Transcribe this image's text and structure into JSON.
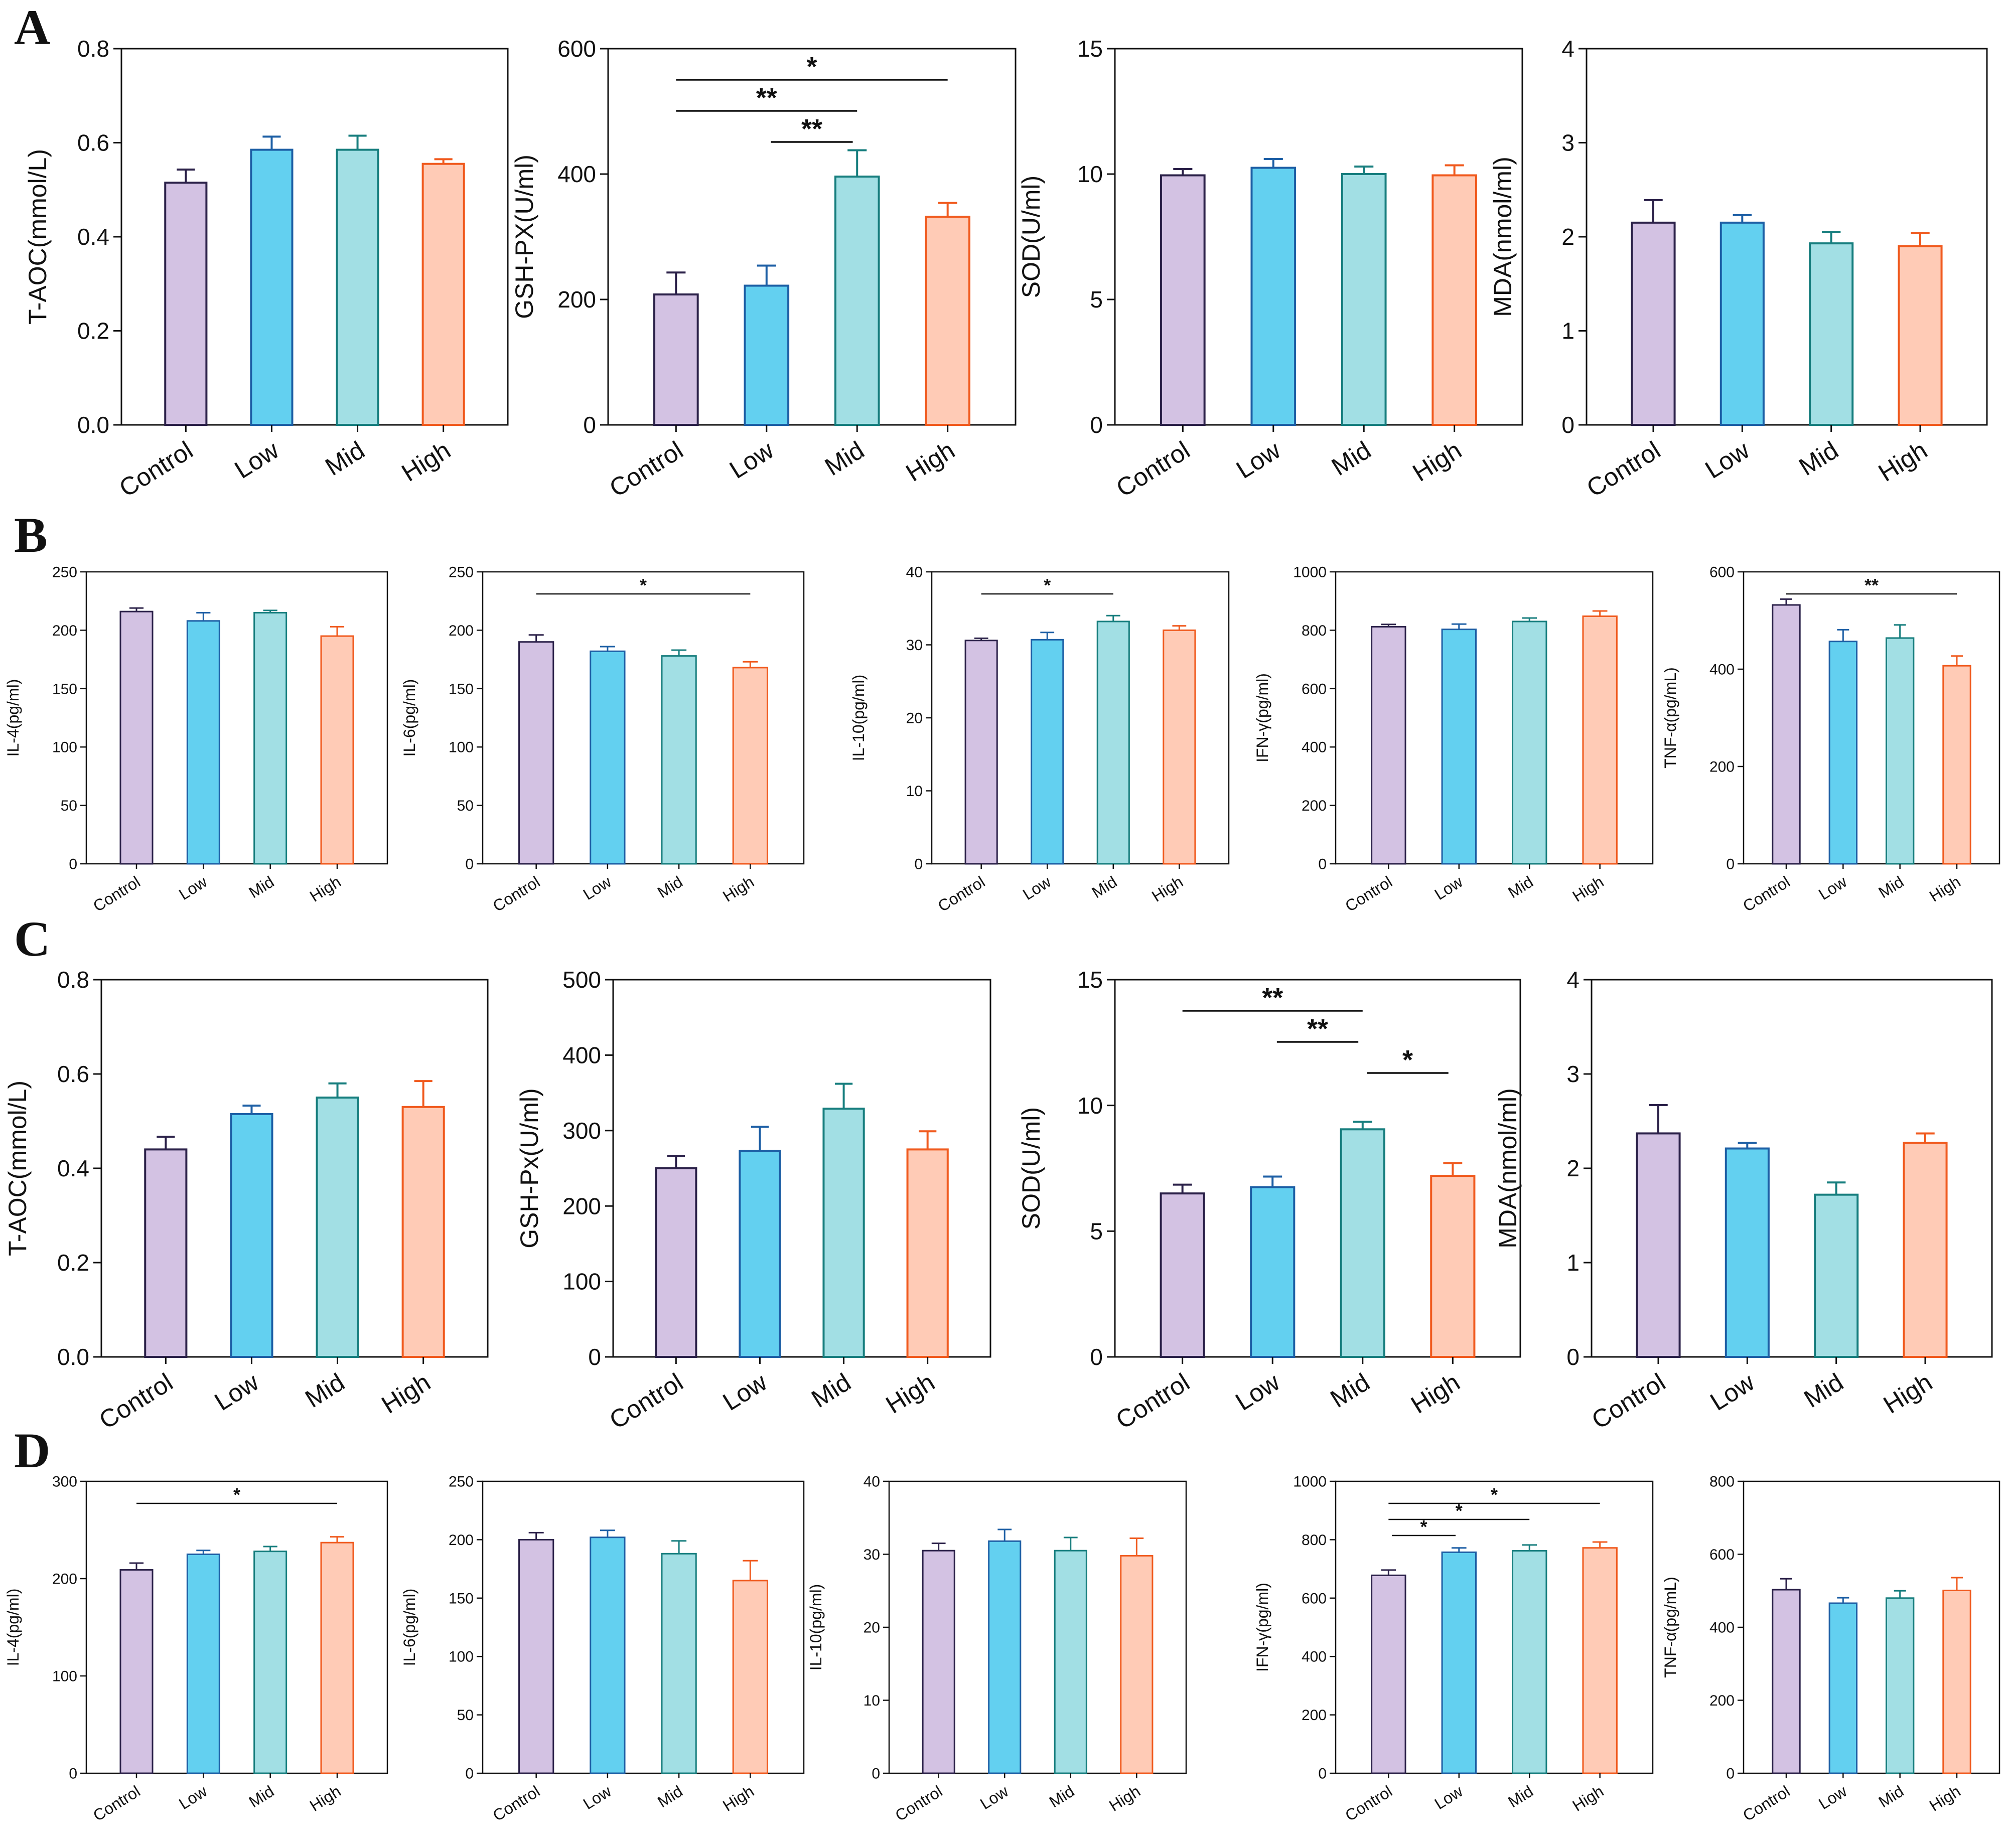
{
  "colors": {
    "Control": {
      "fill": "#d3c2e3",
      "stroke": "#2b2149"
    },
    "Low": {
      "fill": "#63d0f0",
      "stroke": "#1d5fa5"
    },
    "Mid": {
      "fill": "#a2dfe4",
      "stroke": "#177e7e"
    },
    "High": {
      "fill": "#ffcbb6",
      "stroke": "#f05a1e"
    }
  },
  "panels": [
    {
      "label": "A"
    },
    {
      "label": "B"
    },
    {
      "label": "C"
    },
    {
      "label": "D"
    }
  ],
  "chart_data": [
    {
      "type": "bar",
      "panel": "A",
      "ylabel": "T-AOC(mmol/L)",
      "categories": [
        "Control",
        "Low",
        "Mid",
        "High"
      ],
      "values": [
        0.515,
        0.585,
        0.585,
        0.555
      ],
      "errors": [
        0.028,
        0.028,
        0.03,
        0.01
      ],
      "ylim": [
        0,
        0.8
      ],
      "yticks": [
        "0.0",
        "0.2",
        "0.4",
        "0.6",
        "0.8"
      ],
      "sig": []
    },
    {
      "type": "bar",
      "panel": "A",
      "ylabel": "GSH-PX(U/ml)",
      "categories": [
        "Control",
        "Low",
        "Mid",
        "High"
      ],
      "values": [
        208,
        222,
        396,
        332
      ],
      "errors": [
        35,
        32,
        42,
        22
      ],
      "ylim": [
        0,
        600
      ],
      "yticks": [
        "0",
        "200",
        "400",
        "600"
      ],
      "sig": [
        {
          "from": 0,
          "to": 3,
          "label": "*"
        },
        {
          "from": 0,
          "to": 2,
          "label": "**"
        },
        {
          "from": 1,
          "to": 2,
          "label": "**"
        }
      ]
    },
    {
      "type": "bar",
      "panel": "A",
      "ylabel": "SOD(U/ml)",
      "categories": [
        "Control",
        "Low",
        "Mid",
        "High"
      ],
      "values": [
        9.95,
        10.25,
        10.0,
        9.95
      ],
      "errors": [
        0.25,
        0.35,
        0.3,
        0.4
      ],
      "ylim": [
        0,
        15
      ],
      "yticks": [
        "0",
        "5",
        "10",
        "15"
      ],
      "sig": []
    },
    {
      "type": "bar",
      "panel": "A",
      "ylabel": "MDA(nmol/ml)",
      "categories": [
        "Control",
        "Low",
        "Mid",
        "High"
      ],
      "values": [
        2.15,
        2.15,
        1.93,
        1.9
      ],
      "errors": [
        0.24,
        0.08,
        0.12,
        0.14
      ],
      "ylim": [
        0,
        4
      ],
      "yticks": [
        "0",
        "1",
        "2",
        "3",
        "4"
      ],
      "sig": []
    },
    {
      "type": "bar",
      "panel": "B",
      "ylabel": "IL-4(pg/ml)",
      "categories": [
        "Control",
        "Low",
        "Mid",
        "High"
      ],
      "values": [
        216,
        208,
        215,
        195
      ],
      "errors": [
        3,
        7,
        2,
        8
      ],
      "ylim": [
        0,
        250
      ],
      "yticks": [
        "0",
        "50",
        "100",
        "150",
        "200",
        "250"
      ],
      "sig": []
    },
    {
      "type": "bar",
      "panel": "B",
      "ylabel": "IL-6(pg/ml)",
      "categories": [
        "Control",
        "Low",
        "Mid",
        "High"
      ],
      "values": [
        190,
        182,
        178,
        168
      ],
      "errors": [
        6,
        4,
        5,
        5
      ],
      "ylim": [
        0,
        250
      ],
      "yticks": [
        "0",
        "50",
        "100",
        "150",
        "200",
        "250"
      ],
      "sig": [
        {
          "from": 0,
          "to": 3,
          "label": "*"
        }
      ]
    },
    {
      "type": "bar",
      "panel": "B",
      "ylabel": "IL-10(pg/ml)",
      "categories": [
        "Control",
        "Low",
        "Mid",
        "High"
      ],
      "values": [
        30.6,
        30.7,
        33.2,
        32.0
      ],
      "errors": [
        0.3,
        1.0,
        0.8,
        0.6
      ],
      "ylim": [
        0,
        40
      ],
      "yticks": [
        "0",
        "10",
        "20",
        "30",
        "40"
      ],
      "sig": [
        {
          "from": 0,
          "to": 2,
          "label": "*"
        }
      ]
    },
    {
      "type": "bar",
      "panel": "B",
      "ylabel": "IFN-γ(pg/ml)",
      "categories": [
        "Control",
        "Low",
        "Mid",
        "High"
      ],
      "values": [
        812,
        803,
        830,
        848
      ],
      "errors": [
        8,
        18,
        12,
        18
      ],
      "ylim": [
        0,
        1000
      ],
      "yticks": [
        "0",
        "200",
        "400",
        "600",
        "800",
        "1000"
      ],
      "sig": []
    },
    {
      "type": "bar",
      "panel": "B",
      "ylabel": "TNF-α(pg/mL)",
      "categories": [
        "Control",
        "Low",
        "Mid",
        "High"
      ],
      "values": [
        532,
        457,
        464,
        407
      ],
      "errors": [
        12,
        24,
        27,
        20
      ],
      "ylim": [
        0,
        600
      ],
      "yticks": [
        "0",
        "200",
        "400",
        "600"
      ],
      "sig": [
        {
          "from": 0,
          "to": 3,
          "label": "**"
        }
      ]
    },
    {
      "type": "bar",
      "panel": "C",
      "ylabel": "T-AOC(mmol/L)",
      "categories": [
        "Control",
        "Low",
        "Mid",
        "High"
      ],
      "values": [
        0.44,
        0.515,
        0.55,
        0.53
      ],
      "errors": [
        0.027,
        0.018,
        0.03,
        0.055
      ],
      "ylim": [
        0,
        0.8
      ],
      "yticks": [
        "0.0",
        "0.2",
        "0.4",
        "0.6",
        "0.8"
      ],
      "sig": []
    },
    {
      "type": "bar",
      "panel": "C",
      "ylabel": "GSH-Px(U/ml)",
      "categories": [
        "Control",
        "Low",
        "Mid",
        "High"
      ],
      "values": [
        250,
        273,
        329,
        275
      ],
      "errors": [
        16,
        32,
        33,
        24
      ],
      "ylim": [
        0,
        500
      ],
      "yticks": [
        "0",
        "100",
        "200",
        "300",
        "400",
        "500"
      ],
      "sig": []
    },
    {
      "type": "bar",
      "panel": "C",
      "ylabel": "SOD(U/ml)",
      "categories": [
        "Control",
        "Low",
        "Mid",
        "High"
      ],
      "values": [
        6.5,
        6.75,
        9.05,
        7.2
      ],
      "errors": [
        0.35,
        0.42,
        0.3,
        0.5
      ],
      "ylim": [
        0,
        15
      ],
      "yticks": [
        "0",
        "5",
        "10",
        "15"
      ],
      "sig": [
        {
          "from": 0,
          "to": 2,
          "label": "**"
        },
        {
          "from": 1,
          "to": 2,
          "label": "**"
        },
        {
          "from": 2,
          "to": 3,
          "label": "*"
        }
      ]
    },
    {
      "type": "bar",
      "panel": "C",
      "ylabel": "MDA(nmol/ml)",
      "categories": [
        "Control",
        "Low",
        "Mid",
        "High"
      ],
      "values": [
        2.37,
        2.21,
        1.72,
        2.27
      ],
      "errors": [
        0.3,
        0.06,
        0.13,
        0.1
      ],
      "ylim": [
        0,
        4
      ],
      "yticks": [
        "0",
        "1",
        "2",
        "3",
        "4"
      ],
      "sig": []
    },
    {
      "type": "bar",
      "panel": "D",
      "ylabel": "IL-4(pg/ml)",
      "categories": [
        "Control",
        "Low",
        "Mid",
        "High"
      ],
      "values": [
        209,
        225,
        228,
        237
      ],
      "errors": [
        7,
        4,
        5,
        6
      ],
      "ylim": [
        0,
        300
      ],
      "yticks": [
        "0",
        "100",
        "200",
        "300"
      ],
      "sig": [
        {
          "from": 0,
          "to": 3,
          "label": "*"
        }
      ]
    },
    {
      "type": "bar",
      "panel": "D",
      "ylabel": "IL-6(pg/ml)",
      "categories": [
        "Control",
        "Low",
        "Mid",
        "High"
      ],
      "values": [
        200,
        202,
        188,
        165
      ],
      "errors": [
        6,
        6,
        11,
        17
      ],
      "ylim": [
        0,
        250
      ],
      "yticks": [
        "0",
        "50",
        "100",
        "150",
        "200",
        "250"
      ],
      "sig": []
    },
    {
      "type": "bar",
      "panel": "D",
      "ylabel": "IL-10(pg/ml)",
      "categories": [
        "Control",
        "Low",
        "Mid",
        "High"
      ],
      "values": [
        30.5,
        31.8,
        30.5,
        29.8
      ],
      "errors": [
        1.0,
        1.6,
        1.8,
        2.4
      ],
      "ylim": [
        0,
        40
      ],
      "yticks": [
        "0",
        "10",
        "20",
        "30",
        "40"
      ],
      "sig": []
    },
    {
      "type": "bar",
      "panel": "D",
      "ylabel": "IFN-γ(pg/ml)",
      "categories": [
        "Control",
        "Low",
        "Mid",
        "High"
      ],
      "values": [
        678,
        757,
        762,
        772
      ],
      "errors": [
        18,
        15,
        20,
        20
      ],
      "ylim": [
        0,
        1000
      ],
      "yticks": [
        "0",
        "200",
        "400",
        "600",
        "800",
        "1000"
      ],
      "sig": [
        {
          "from": 0,
          "to": 3,
          "label": "*"
        },
        {
          "from": 0,
          "to": 2,
          "label": "*"
        },
        {
          "from": 0,
          "to": 1,
          "label": "*"
        }
      ]
    },
    {
      "type": "bar",
      "panel": "D",
      "ylabel": "TNF-α(pg/mL)",
      "categories": [
        "Control",
        "Low",
        "Mid",
        "High"
      ],
      "values": [
        503,
        466,
        480,
        501
      ],
      "errors": [
        30,
        15,
        20,
        35
      ],
      "ylim": [
        0,
        800
      ],
      "yticks": [
        "0",
        "200",
        "400",
        "600",
        "800"
      ],
      "sig": []
    }
  ]
}
